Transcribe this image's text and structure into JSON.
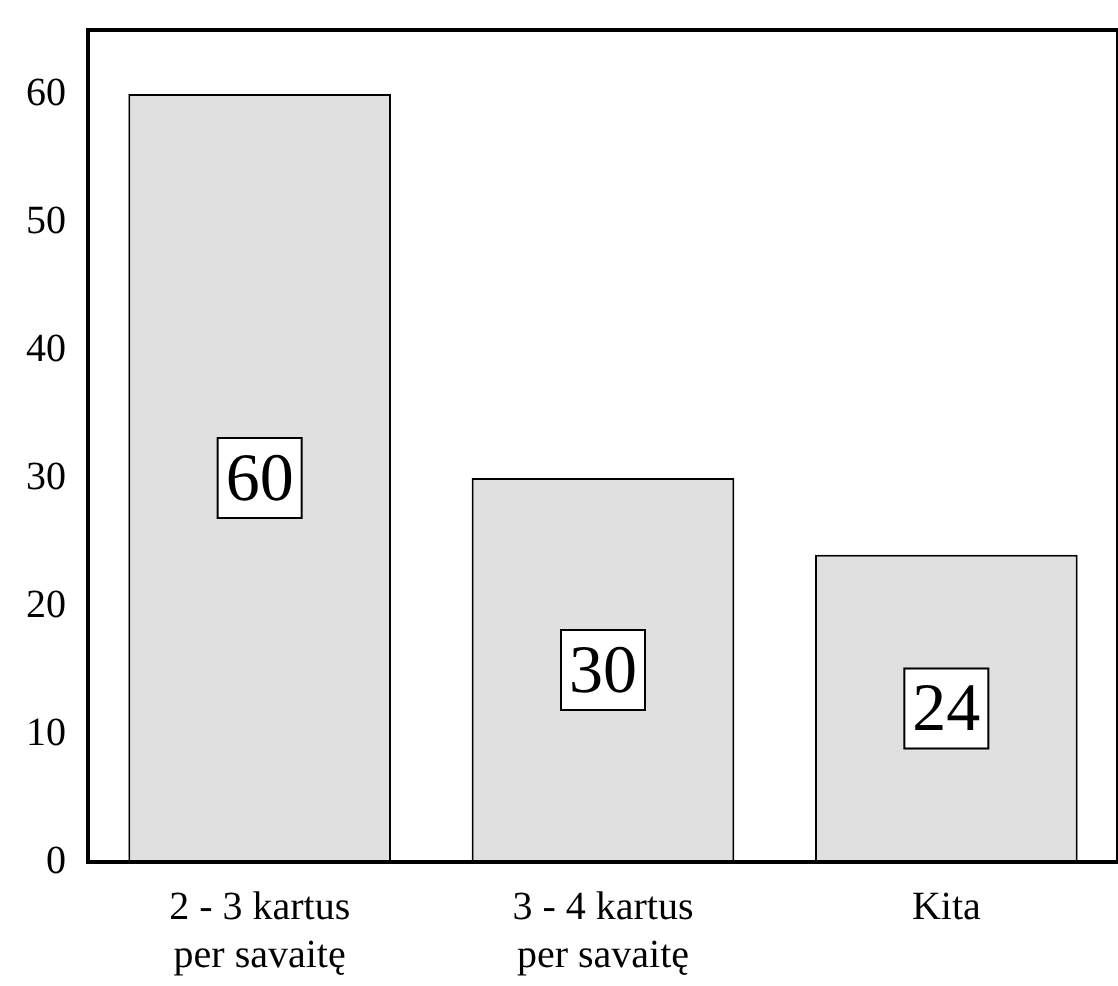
{
  "chart_data": {
    "type": "bar",
    "categories": [
      "2 - 3 kartus\nper savaitę",
      "3 - 4 kartus\nper savaitę",
      "Kita"
    ],
    "values": [
      60,
      30,
      24
    ],
    "color": "#e0e0e0",
    "ylim": [
      0,
      65
    ],
    "yticks": [
      0,
      10,
      20,
      30,
      40,
      50,
      60
    ],
    "grid": false,
    "legend": false,
    "data_labels": true
  }
}
